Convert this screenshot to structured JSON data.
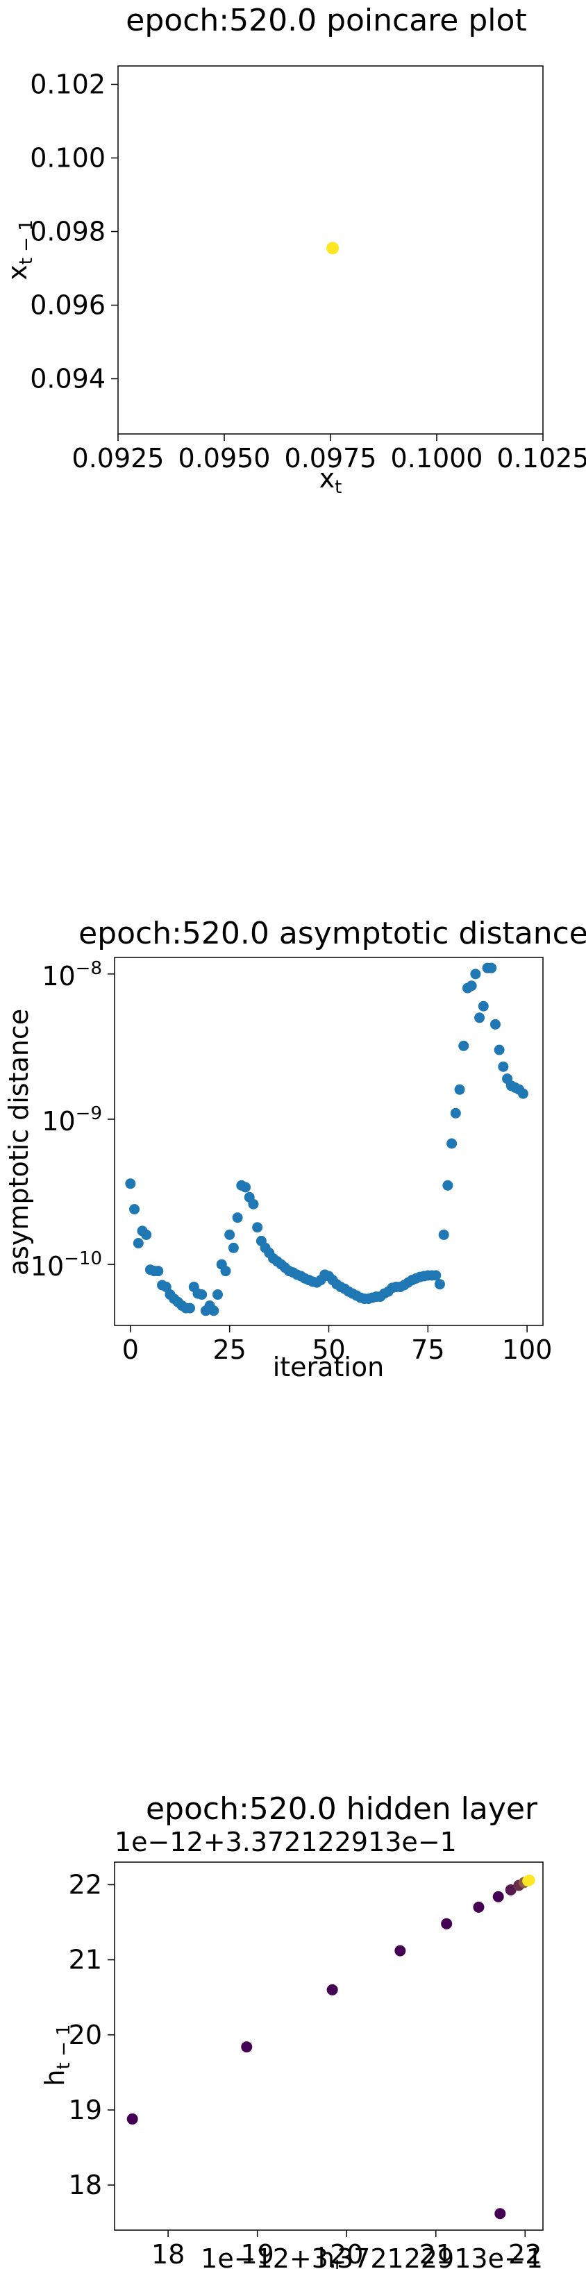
{
  "chart_data": [
    {
      "type": "scatter",
      "title": "epoch:520.0 poincare plot",
      "xlabel": "x_t",
      "ylabel": "x_t-1",
      "xlim": [
        0.0925,
        0.1025
      ],
      "ylim": [
        0.0925,
        0.1025
      ],
      "x_ticks": [
        0.0925,
        0.095,
        0.0975,
        0.1,
        0.1025
      ],
      "x_tick_labels": [
        "0.0925",
        "0.0950",
        "0.0975",
        "0.1000",
        "0.1025"
      ],
      "y_ticks": [
        0.094,
        0.096,
        0.098,
        0.1,
        0.102
      ],
      "y_tick_labels": [
        "0.094",
        "0.096",
        "0.098",
        "0.100",
        "0.102"
      ],
      "grid": false,
      "points": [
        {
          "x": 0.09755,
          "y": 0.09755
        }
      ],
      "point_color": "#fde725"
    },
    {
      "type": "scatter",
      "title": "epoch:520.0 asymptotic distance",
      "xlabel": "iteration",
      "ylabel": "asymptotic distance",
      "yscale": "log",
      "xlim": [
        -4,
        104
      ],
      "ylim": [
        3.8e-11,
        1.3e-08
      ],
      "x_ticks": [
        0,
        25,
        50,
        75,
        100
      ],
      "x_tick_labels": [
        "0",
        "25",
        "50",
        "75",
        "100"
      ],
      "y_ticks": [
        1e-10,
        1e-09,
        1e-08
      ],
      "y_tick_labels": [
        "10−10",
        "10−9",
        "10−8"
      ],
      "grid": false,
      "point_color": "#1f77b4",
      "x": [
        0,
        1,
        2,
        3,
        4,
        5,
        6,
        7,
        8,
        9,
        10,
        11,
        12,
        13,
        14,
        15,
        16,
        17,
        18,
        19,
        20,
        21,
        22,
        23,
        24,
        25,
        26,
        27,
        28,
        29,
        30,
        31,
        32,
        33,
        34,
        35,
        36,
        37,
        38,
        39,
        40,
        41,
        42,
        43,
        44,
        45,
        46,
        47,
        48,
        49,
        50,
        51,
        52,
        53,
        54,
        55,
        56,
        57,
        58,
        59,
        60,
        61,
        62,
        63,
        64,
        65,
        66,
        67,
        68,
        69,
        70,
        71,
        72,
        73,
        74,
        75,
        76,
        77,
        78,
        79,
        80,
        81,
        82,
        83,
        84,
        85,
        86,
        87,
        88,
        89,
        90,
        91,
        92,
        93,
        94,
        95,
        96,
        97,
        98,
        99
      ],
      "y": [
        3.6e-10,
        2.4e-10,
        1.4e-10,
        1.7e-10,
        1.6e-10,
        9.2e-11,
        9e-11,
        9e-11,
        7.2e-11,
        7e-11,
        6.2e-11,
        5.8e-11,
        5.5e-11,
        5.2e-11,
        5e-11,
        5e-11,
        7e-11,
        6.3e-11,
        6.2e-11,
        4.8e-11,
        5.2e-11,
        4.8e-11,
        6.2e-11,
        1e-10,
        9e-11,
        1.6e-10,
        1.3e-10,
        2.1e-10,
        3.5e-10,
        3.4e-10,
        2.9e-10,
        2.6e-10,
        1.8e-10,
        1.45e-10,
        1.3e-10,
        1.2e-10,
        1.1e-10,
        1.05e-10,
        1e-10,
        9.5e-11,
        9e-11,
        8.8e-11,
        8.5e-11,
        8.3e-11,
        8e-11,
        7.8e-11,
        7.6e-11,
        7.5e-11,
        7.8e-11,
        8.5e-11,
        8.3e-11,
        7.8e-11,
        7.3e-11,
        7e-11,
        6.8e-11,
        6.5e-11,
        6.3e-11,
        6.1e-11,
        5.9e-11,
        5.8e-11,
        5.8e-11,
        5.9e-11,
        6e-11,
        6e-11,
        6.3e-11,
        6.5e-11,
        6.9e-11,
        7e-11,
        7e-11,
        7.2e-11,
        7.5e-11,
        7.8e-11,
        8e-11,
        8.2e-11,
        8.3e-11,
        8.4e-11,
        8.4e-11,
        8.4e-11,
        7.3e-11,
        1.6e-10,
        3.5e-10,
        6.8e-10,
        1.1e-09,
        1.6e-09,
        3.2e-09,
        8e-09,
        8.3e-09,
        1e-08,
        5e-09,
        6e-09,
        1.1e-08,
        1.1e-08,
        4.5e-09,
        3e-09,
        2.3e-09,
        1.9e-09,
        1.7e-09,
        1.65e-09,
        1.6e-09,
        1.5e-09
      ]
    },
    {
      "type": "scatter",
      "title": "epoch:520.0 hidden layer",
      "xlabel": "h_t",
      "ylabel": "h_t-1",
      "x_offset_label": "1e−12+3.372122913e−1",
      "y_offset_label": "1e−12+3.372122913e−1",
      "xlim": [
        17.4,
        22.2
      ],
      "ylim": [
        17.4,
        22.3
      ],
      "x_ticks": [
        18,
        19,
        20,
        21,
        22
      ],
      "x_tick_labels": [
        "18",
        "19",
        "20",
        "21",
        "22"
      ],
      "y_ticks": [
        18,
        19,
        20,
        21,
        22
      ],
      "y_tick_labels": [
        "18",
        "19",
        "20",
        "21",
        "22"
      ],
      "grid": false,
      "colormap": [
        "#440154",
        "#fde725"
      ],
      "points": [
        {
          "x": 17.6,
          "y": 18.88,
          "c": 0
        },
        {
          "x": 18.88,
          "y": 19.84,
          "c": 0
        },
        {
          "x": 19.84,
          "y": 20.6,
          "c": 0
        },
        {
          "x": 20.6,
          "y": 21.12,
          "c": 0
        },
        {
          "x": 21.12,
          "y": 21.48,
          "c": 0
        },
        {
          "x": 21.48,
          "y": 21.7,
          "c": 0
        },
        {
          "x": 21.7,
          "y": 21.84,
          "c": 0
        },
        {
          "x": 21.84,
          "y": 21.93,
          "c": 0.1
        },
        {
          "x": 21.93,
          "y": 21.99,
          "c": 0.2
        },
        {
          "x": 21.99,
          "y": 22.03,
          "c": 0.4
        },
        {
          "x": 22.03,
          "y": 22.05,
          "c": 1
        },
        {
          "x": 22.05,
          "y": 22.06,
          "c": 1
        },
        {
          "x": 21.72,
          "y": 17.62,
          "c": 0
        }
      ]
    }
  ]
}
